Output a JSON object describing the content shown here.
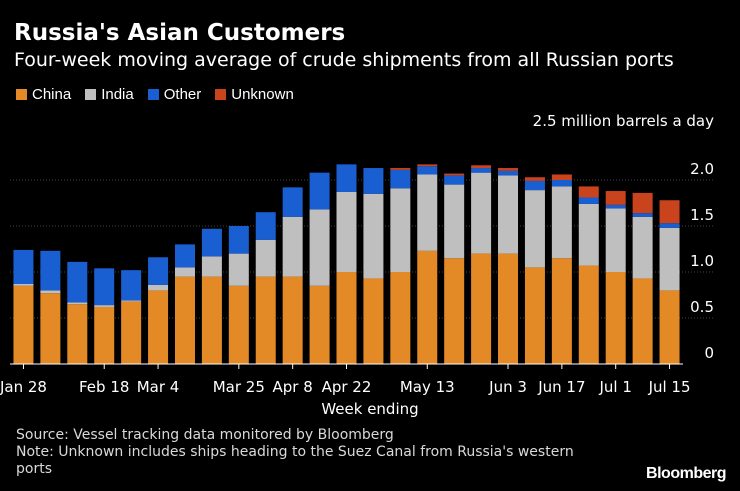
{
  "title": "Russia's Asian Customers",
  "subtitle": "Four-week moving average of crude shipments from all Russian ports",
  "legend": [
    {
      "label": "China",
      "color": "#e38a27"
    },
    {
      "label": "India",
      "color": "#bfbfbf"
    },
    {
      "label": "Other",
      "color": "#1a5fd1"
    },
    {
      "label": "Unknown",
      "color": "#c9431c"
    }
  ],
  "footer": {
    "source": "Source: Vessel tracking data monitored by Bloomberg",
    "note_line1": "Note: Unknown includes ships heading to the Suez Canal from Russia's western",
    "note_line2": "ports"
  },
  "brand": "Bloomberg",
  "chart_data": {
    "type": "bar",
    "stacked": true,
    "ylabel": "2.5 million barrels a day",
    "xlabel": "Week ending",
    "ylim": [
      0,
      2.5
    ],
    "yticks": [
      "0",
      "0.5",
      "1.0",
      "1.5",
      "2.0"
    ],
    "ytick_values": [
      0,
      0.5,
      1.0,
      1.5,
      2.0
    ],
    "grid": true,
    "legend_position": "top-left",
    "categories": [
      "Jan 28",
      "Feb 4",
      "Feb 11",
      "Feb 18",
      "Feb 25",
      "Mar 4",
      "Mar 11",
      "Mar 18",
      "Mar 25",
      "Apr 1",
      "Apr 8",
      "Apr 15",
      "Apr 22",
      "Apr 29",
      "May 6",
      "May 13",
      "May 20",
      "May 27",
      "Jun 3",
      "Jun 10",
      "Jun 17",
      "Jun 24",
      "Jul 1",
      "Jul 8",
      "Jul 15"
    ],
    "xtick_labels": [
      {
        "index": 0,
        "label": "Jan 28"
      },
      {
        "index": 3,
        "label": "Feb 18"
      },
      {
        "index": 5,
        "label": "Mar 4"
      },
      {
        "index": 8,
        "label": "Mar 25"
      },
      {
        "index": 10,
        "label": "Apr 8"
      },
      {
        "index": 12,
        "label": "Apr 22"
      },
      {
        "index": 15,
        "label": "May 13"
      },
      {
        "index": 18,
        "label": "Jun 3"
      },
      {
        "index": 20,
        "label": "Jun 17"
      },
      {
        "index": 22,
        "label": "Jul 1"
      },
      {
        "index": 24,
        "label": "Jul 15"
      }
    ],
    "series": [
      {
        "name": "China",
        "color": "#e38a27",
        "values": [
          0.85,
          0.77,
          0.65,
          0.62,
          0.68,
          0.8,
          0.95,
          0.95,
          0.85,
          0.95,
          0.95,
          0.85,
          1.0,
          0.93,
          1.0,
          1.23,
          1.15,
          1.2,
          1.2,
          1.05,
          1.15,
          1.07,
          1.0,
          0.93,
          0.8
        ]
      },
      {
        "name": "India",
        "color": "#bfbfbf",
        "values": [
          0.02,
          0.03,
          0.02,
          0.02,
          0.01,
          0.06,
          0.1,
          0.22,
          0.35,
          0.4,
          0.65,
          0.83,
          0.87,
          0.92,
          0.91,
          0.83,
          0.8,
          0.88,
          0.85,
          0.84,
          0.78,
          0.67,
          0.69,
          0.67,
          0.68
        ]
      },
      {
        "name": "Other",
        "color": "#1a5fd1",
        "values": [
          0.37,
          0.43,
          0.44,
          0.4,
          0.33,
          0.3,
          0.25,
          0.3,
          0.3,
          0.3,
          0.32,
          0.4,
          0.3,
          0.28,
          0.2,
          0.09,
          0.1,
          0.05,
          0.05,
          0.1,
          0.07,
          0.07,
          0.04,
          0.04,
          0.05
        ]
      },
      {
        "name": "Unknown",
        "color": "#c9431c",
        "values": [
          0,
          0,
          0,
          0,
          0,
          0,
          0,
          0,
          0,
          0,
          0,
          0,
          0,
          0,
          0.02,
          0.02,
          0.02,
          0.03,
          0.03,
          0.04,
          0.06,
          0.12,
          0.15,
          0.22,
          0.25
        ]
      }
    ]
  }
}
